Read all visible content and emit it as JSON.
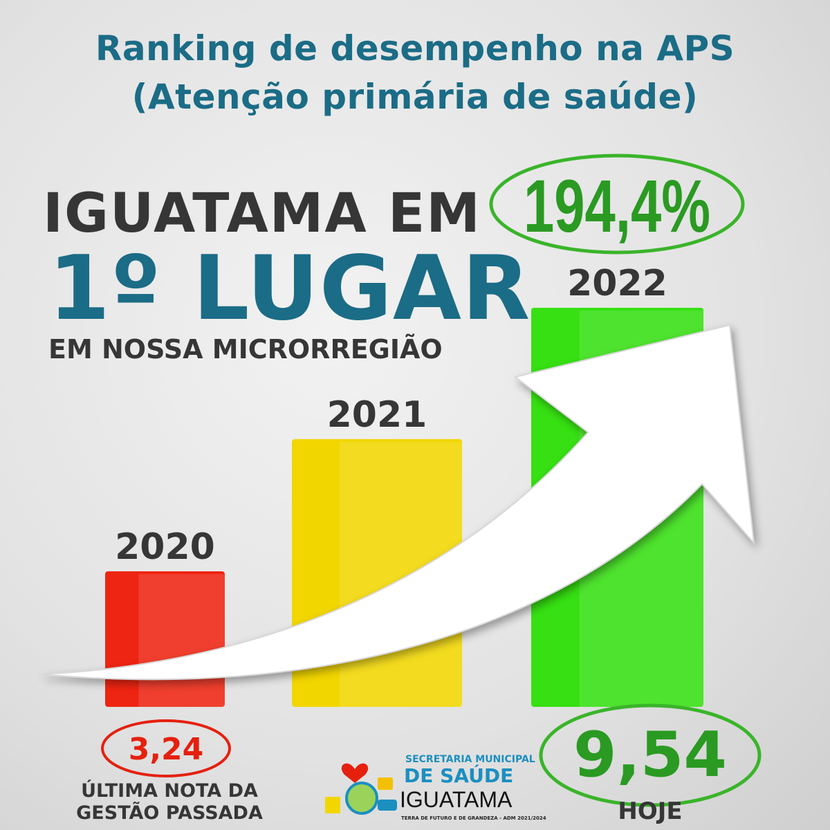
{
  "header": {
    "title_line1": "Ranking de desempenho na APS",
    "title_line2": "(Atenção primária de saúde)"
  },
  "headline": {
    "line1": "IGUATAMA EM",
    "line2": "1º LUGAR",
    "line3": "EM NOSSA MICRORREGIÃO"
  },
  "growth": "194,4%",
  "chart_data": {
    "type": "bar",
    "categories": [
      "2020",
      "2021",
      "2022"
    ],
    "values": [
      3.24,
      6.4,
      9.54
    ],
    "value_labels": [
      "3,24",
      "",
      "9,54"
    ],
    "colors": [
      "#ee2512",
      "#f2d600",
      "#36e012"
    ],
    "ylim": [
      0,
      9.54
    ]
  },
  "captions": {
    "left": "ÚLTIMA NOTA DA GESTÃO PASSADA",
    "left_l1": "ÚLTIMA NOTA DA",
    "left_l2": "GESTÃO PASSADA",
    "right": "HOJE"
  },
  "logo": {
    "line1": "SECRETARIA MUNICIPAL",
    "line2": "DE SAÚDE",
    "line3": "IGUATAMA",
    "line4": "TERRA DE FUTURO E DE GRANDEZA - ADM 2021/2024"
  },
  "colors": {
    "teal": "#1b6c86",
    "green_text": "#2a9a22",
    "red_text": "#e5200f",
    "ellipse_green": "#3ab42a",
    "ellipse_red": "#e5200f"
  }
}
